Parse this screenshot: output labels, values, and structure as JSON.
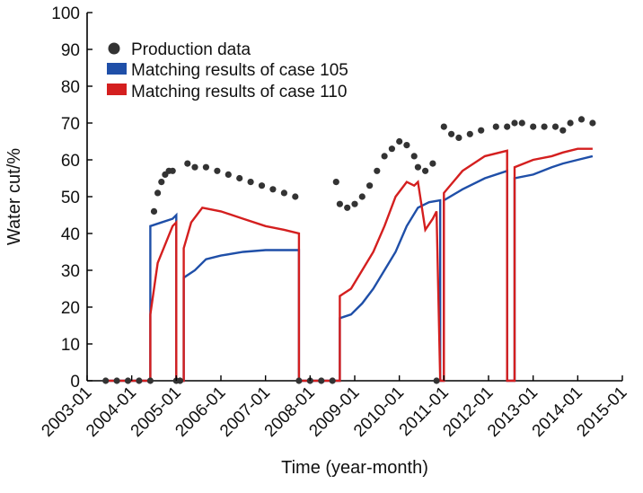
{
  "chart_data": {
    "type": "line",
    "xlabel": "Time (year-month)",
    "ylabel": "Water cut/%",
    "ylim": [
      0,
      100
    ],
    "xlim": [
      "2003-01",
      "2015-01"
    ],
    "y_ticks": [
      0,
      10,
      20,
      30,
      40,
      50,
      60,
      70,
      80,
      90,
      100
    ],
    "x_ticks": [
      "2003-01",
      "2004-01",
      "2005-01",
      "2006-01",
      "2007-01",
      "2008-01",
      "2009-01",
      "2010-01",
      "2011-01",
      "2012-01",
      "2013-01",
      "2014-01",
      "2015-01"
    ],
    "grid": false,
    "legend_position": "top-left",
    "series": [
      {
        "name": "Production data",
        "style": "scatter",
        "color": "#333333",
        "points": [
          [
            "2003-06",
            0
          ],
          [
            "2003-09",
            0
          ],
          [
            "2003-12",
            0
          ],
          [
            "2004-03",
            0
          ],
          [
            "2004-06",
            0
          ],
          [
            "2004-07",
            46
          ],
          [
            "2004-08",
            51
          ],
          [
            "2004-09",
            54
          ],
          [
            "2004-10",
            56
          ],
          [
            "2004-11",
            57
          ],
          [
            "2004-12",
            57
          ],
          [
            "2005-01",
            0
          ],
          [
            "2005-02",
            0
          ],
          [
            "2005-04",
            59
          ],
          [
            "2005-06",
            58
          ],
          [
            "2005-09",
            58
          ],
          [
            "2005-12",
            57
          ],
          [
            "2006-03",
            56
          ],
          [
            "2006-06",
            55
          ],
          [
            "2006-09",
            54
          ],
          [
            "2006-12",
            53
          ],
          [
            "2007-03",
            52
          ],
          [
            "2007-06",
            51
          ],
          [
            "2007-09",
            50
          ],
          [
            "2007-10",
            0
          ],
          [
            "2008-01",
            0
          ],
          [
            "2008-04",
            0
          ],
          [
            "2008-07",
            0
          ],
          [
            "2008-08",
            54
          ],
          [
            "2008-09",
            48
          ],
          [
            "2008-11",
            47
          ],
          [
            "2009-01",
            48
          ],
          [
            "2009-03",
            50
          ],
          [
            "2009-05",
            53
          ],
          [
            "2009-07",
            57
          ],
          [
            "2009-09",
            61
          ],
          [
            "2009-11",
            63
          ],
          [
            "2010-01",
            65
          ],
          [
            "2010-03",
            64
          ],
          [
            "2010-05",
            61
          ],
          [
            "2010-06",
            58
          ],
          [
            "2010-08",
            57
          ],
          [
            "2010-10",
            59
          ],
          [
            "2010-11",
            0
          ],
          [
            "2011-01",
            69
          ],
          [
            "2011-03",
            67
          ],
          [
            "2011-05",
            66
          ],
          [
            "2011-08",
            67
          ],
          [
            "2011-11",
            68
          ],
          [
            "2012-03",
            69
          ],
          [
            "2012-06",
            69
          ],
          [
            "2012-08",
            70
          ],
          [
            "2012-10",
            70
          ],
          [
            "2013-01",
            69
          ],
          [
            "2013-04",
            69
          ],
          [
            "2013-07",
            69
          ],
          [
            "2013-09",
            68
          ],
          [
            "2013-11",
            70
          ],
          [
            "2014-02",
            71
          ],
          [
            "2014-05",
            70
          ]
        ]
      },
      {
        "name": "Matching results of case 105",
        "style": "line",
        "color": "#1f4fa8",
        "points": [
          [
            "2003-06",
            0
          ],
          [
            "2004-06",
            0
          ],
          [
            "2004-06",
            42
          ],
          [
            "2004-09",
            43
          ],
          [
            "2004-12",
            44
          ],
          [
            "2005-01",
            45
          ],
          [
            "2005-01",
            0
          ],
          [
            "2005-03",
            0
          ],
          [
            "2005-03",
            28
          ],
          [
            "2005-06",
            30
          ],
          [
            "2005-09",
            33
          ],
          [
            "2006-01",
            34
          ],
          [
            "2006-07",
            35
          ],
          [
            "2007-01",
            35.5
          ],
          [
            "2007-09",
            35.5
          ],
          [
            "2007-10",
            35.5
          ],
          [
            "2007-10",
            0
          ],
          [
            "2008-09",
            0
          ],
          [
            "2008-09",
            17
          ],
          [
            "2008-12",
            18
          ],
          [
            "2009-03",
            21
          ],
          [
            "2009-06",
            25
          ],
          [
            "2009-09",
            30
          ],
          [
            "2009-12",
            35
          ],
          [
            "2010-03",
            42
          ],
          [
            "2010-06",
            47
          ],
          [
            "2010-09",
            48.5
          ],
          [
            "2010-12",
            49
          ],
          [
            "2010-12",
            0
          ],
          [
            "2011-01",
            0
          ],
          [
            "2011-01",
            49
          ],
          [
            "2011-06",
            52
          ],
          [
            "2011-12",
            55
          ],
          [
            "2012-06",
            57
          ],
          [
            "2012-06",
            0
          ],
          [
            "2012-08",
            0
          ],
          [
            "2012-08",
            55
          ],
          [
            "2013-01",
            56
          ],
          [
            "2013-06",
            58
          ],
          [
            "2013-09",
            59
          ],
          [
            "2014-01",
            60
          ],
          [
            "2014-05",
            61
          ]
        ]
      },
      {
        "name": "Matching results of case 110",
        "style": "line",
        "color": "#d41f1f",
        "points": [
          [
            "2003-06",
            0
          ],
          [
            "2004-06",
            0
          ],
          [
            "2004-06",
            18
          ],
          [
            "2004-08",
            32
          ],
          [
            "2004-10",
            37
          ],
          [
            "2004-12",
            42
          ],
          [
            "2005-01",
            43
          ],
          [
            "2005-01",
            0
          ],
          [
            "2005-03",
            0
          ],
          [
            "2005-03",
            36
          ],
          [
            "2005-05",
            43
          ],
          [
            "2005-08",
            47
          ],
          [
            "2006-01",
            46
          ],
          [
            "2006-07",
            44
          ],
          [
            "2007-01",
            42
          ],
          [
            "2007-06",
            41
          ],
          [
            "2007-10",
            40
          ],
          [
            "2007-10",
            0
          ],
          [
            "2008-09",
            0
          ],
          [
            "2008-09",
            23
          ],
          [
            "2008-12",
            25
          ],
          [
            "2009-03",
            30
          ],
          [
            "2009-06",
            35
          ],
          [
            "2009-09",
            42
          ],
          [
            "2009-12",
            50
          ],
          [
            "2010-03",
            54
          ],
          [
            "2010-05",
            53
          ],
          [
            "2010-06",
            54
          ],
          [
            "2010-08",
            41
          ],
          [
            "2010-10",
            44
          ],
          [
            "2010-11",
            46
          ],
          [
            "2010-12",
            0
          ],
          [
            "2011-01",
            0
          ],
          [
            "2011-01",
            51
          ],
          [
            "2011-06",
            57
          ],
          [
            "2011-12",
            61
          ],
          [
            "2012-06",
            62.5
          ],
          [
            "2012-06",
            0
          ],
          [
            "2012-08",
            0
          ],
          [
            "2012-08",
            58
          ],
          [
            "2013-01",
            60
          ],
          [
            "2013-06",
            61
          ],
          [
            "2013-09",
            62
          ],
          [
            "2014-01",
            63
          ],
          [
            "2014-05",
            63
          ]
        ]
      }
    ]
  }
}
